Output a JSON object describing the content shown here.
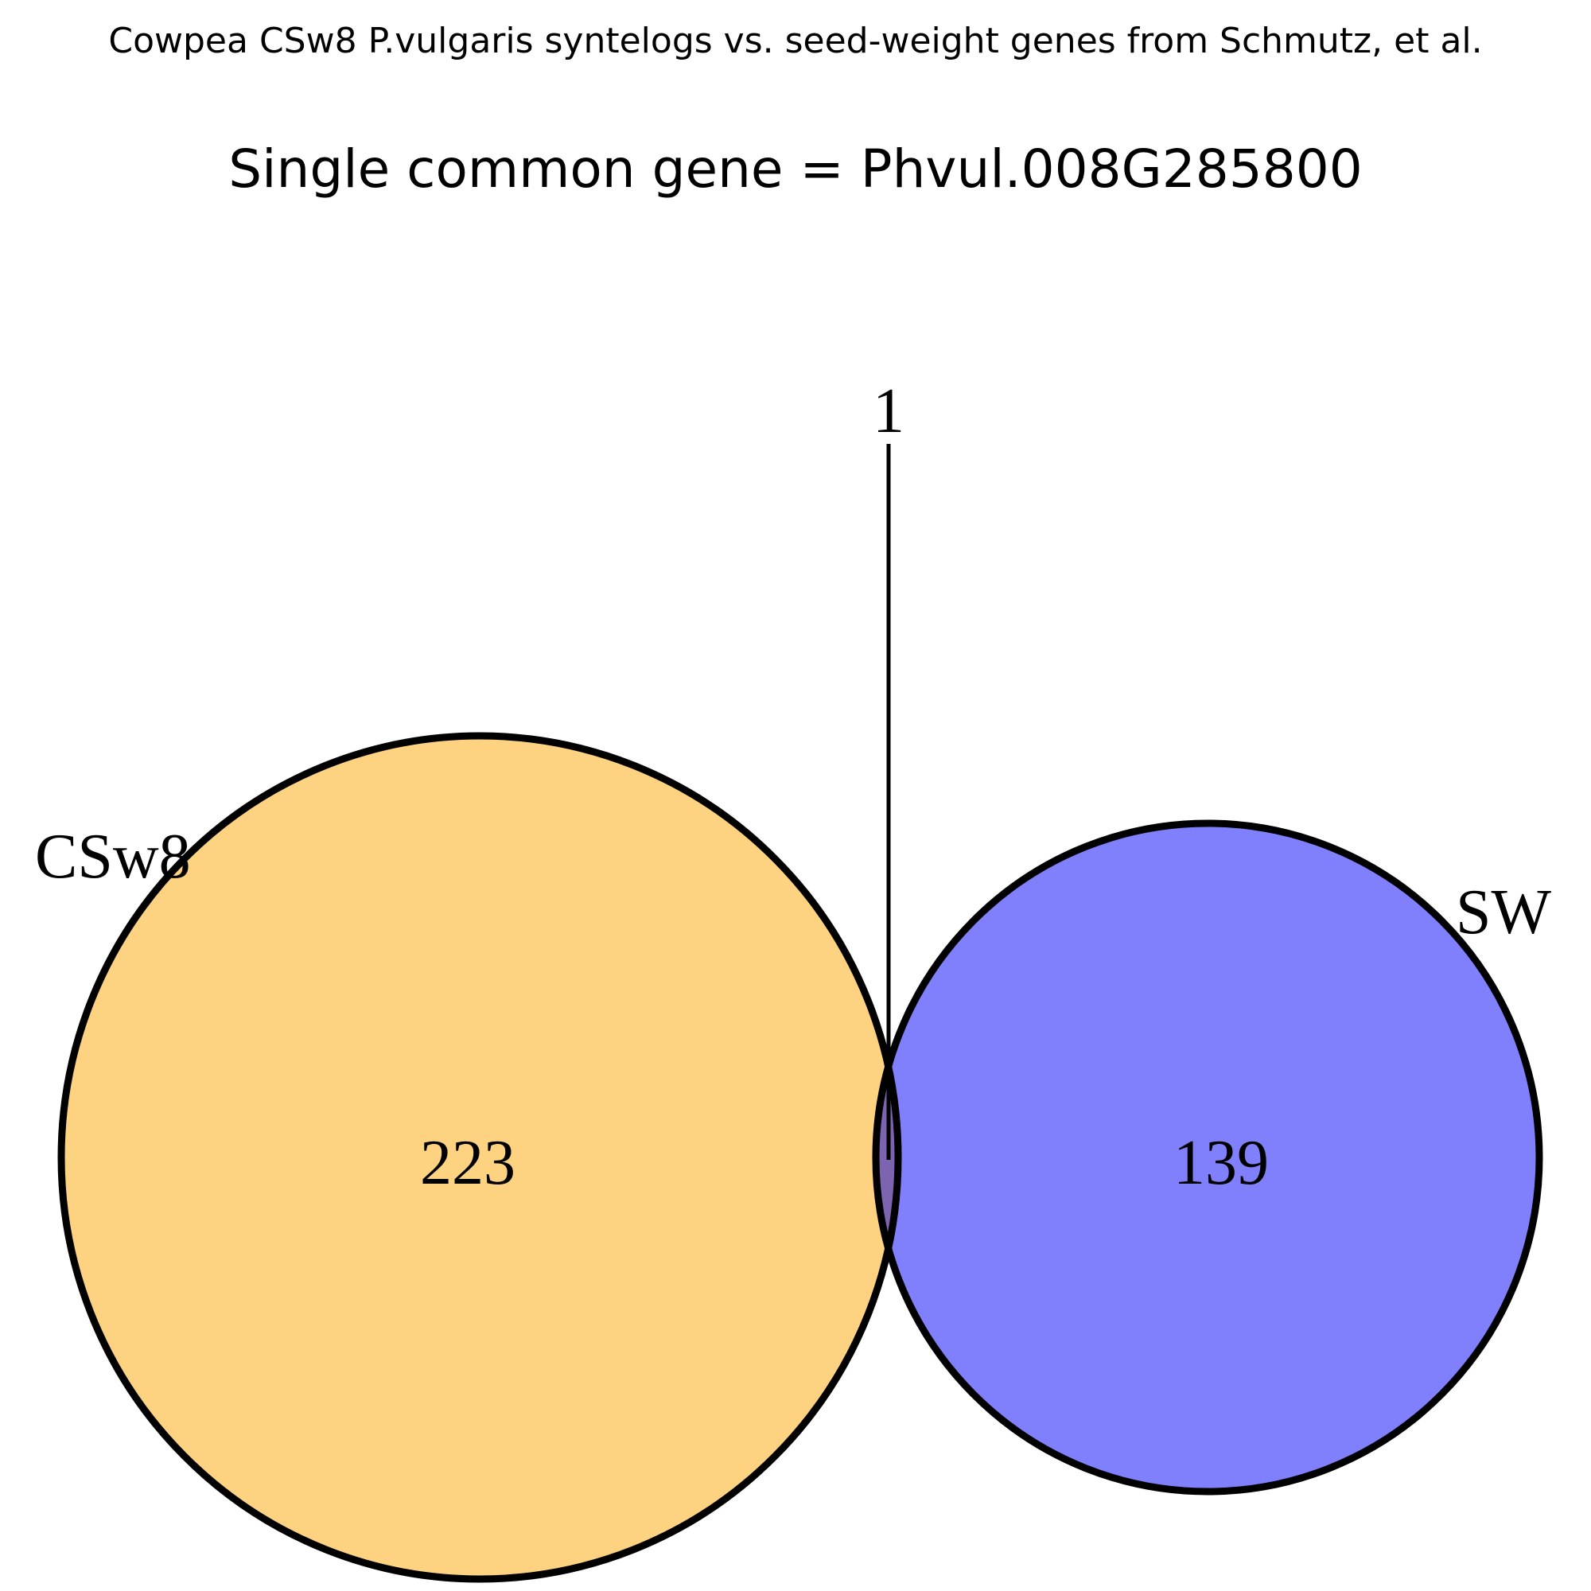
{
  "title": "Cowpea CSw8 P.vulgaris syntelogs vs. seed-weight genes from Schmutz, et al.",
  "subtitle": "Single common gene = Phvul.008G285800",
  "venn": {
    "sets": [
      {
        "label": "CSw8",
        "only_count": "223",
        "color": "#fdd280"
      },
      {
        "label": "SW",
        "only_count": "139",
        "color": "#8080fd"
      }
    ],
    "intersection": {
      "count": "1",
      "color": "#7d64b0"
    },
    "outline_color": "#000000"
  }
}
